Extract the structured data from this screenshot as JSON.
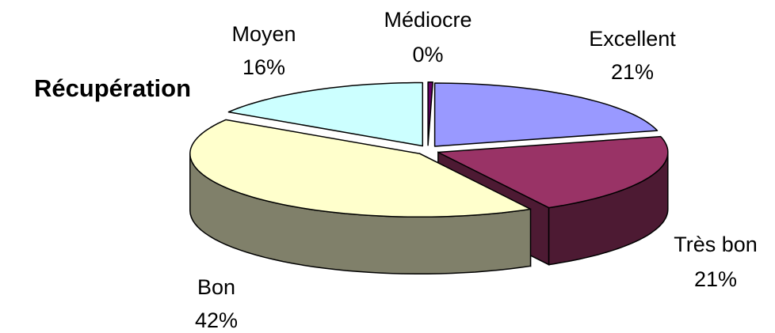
{
  "chart_data": {
    "type": "pie",
    "title": "Récupération",
    "style": "3d-exploded",
    "slices": [
      {
        "label": "Excellent",
        "value": 21,
        "display": "21%",
        "top_color": "#9999ff",
        "side_color": "#5a5a99"
      },
      {
        "label": "Très bon",
        "value": 21,
        "display": "21%",
        "top_color": "#993366",
        "side_color": "#4d1a33"
      },
      {
        "label": "Bon",
        "value": 42,
        "display": "42%",
        "top_color": "#ffffcc",
        "side_color": "#80806a"
      },
      {
        "label": "Moyen",
        "value": 16,
        "display": "16%",
        "top_color": "#ccffff",
        "side_color": "#669999"
      },
      {
        "label": "Médiocre",
        "value": 0,
        "display": "0%",
        "top_color": "#660066",
        "side_color": "#330033"
      }
    ]
  }
}
